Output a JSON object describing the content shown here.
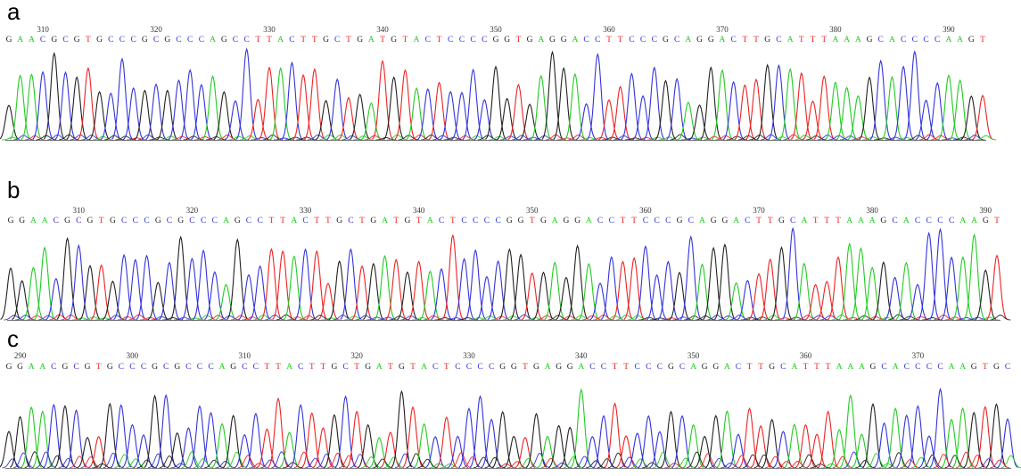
{
  "colors": {
    "A": "#22cc22",
    "C": "#3333dd",
    "G": "#222222",
    "T": "#ee2222"
  },
  "chart_data": [
    {
      "type": "line",
      "title": "a",
      "subtype": "sequencing-chromatogram",
      "first_position": 307,
      "tick_labels": [
        "310",
        "320",
        "330",
        "340",
        "350",
        "360",
        "370",
        "380",
        "390"
      ],
      "sequence": "GAACGCGTGCCCGCGCCCAGCCTTACTTGCTGATGTACTCCCCGGTGAGGACCTTCCCGCAGGACTTGCATTTAAAGCACCCCAAGT"
    },
    {
      "type": "line",
      "title": "b",
      "subtype": "sequencing-chromatogram",
      "first_position": 304,
      "tick_labels": [
        "310",
        "320",
        "330",
        "340",
        "350",
        "360",
        "370",
        "380",
        "390"
      ],
      "sequence": "GGAACGCGTGCCCGCGCCCAGCCTTACTTGCTGATGTACTCCCCGGTGAGGACCTTCCCGCAGGACTTGCATTTAAAGCACCCCAAGT"
    },
    {
      "type": "line",
      "title": "c",
      "subtype": "sequencing-chromatogram",
      "first_position": 289,
      "tick_labels": [
        "290",
        "300",
        "310",
        "320",
        "330",
        "340",
        "350",
        "360",
        "370"
      ],
      "sequence": "GGAACGCGTGCCCGCGCCCAGCCTTACTTGCTGATGTACTCCCCGGTGAGGACCTTCCCGCAGGACTTGCATTTAAAGCACCCCAAGTGC"
    }
  ]
}
